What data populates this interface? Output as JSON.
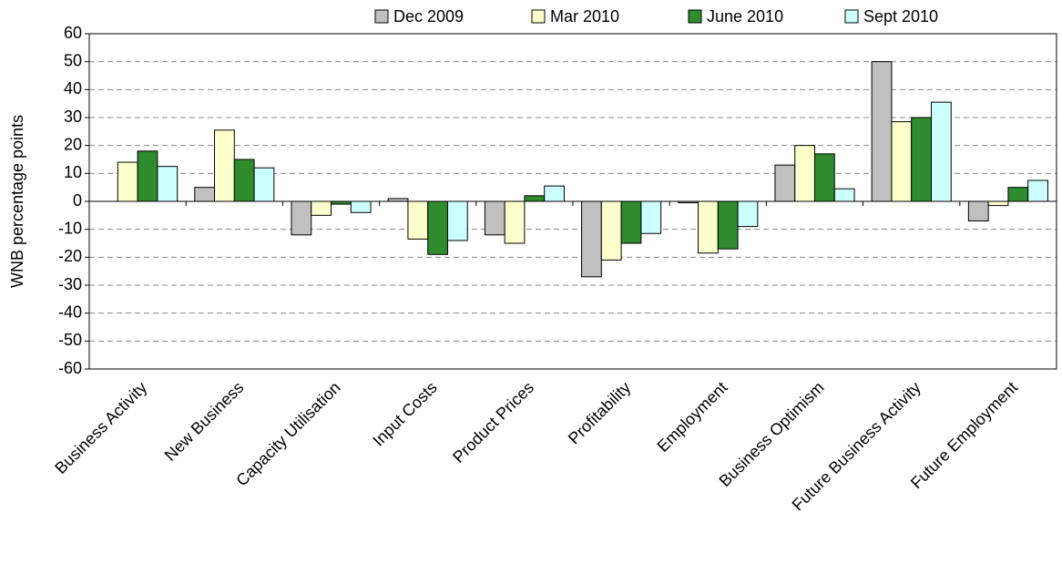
{
  "chart_data": {
    "type": "bar",
    "y_label": "WNB percentage points",
    "categories": [
      "Business Activity",
      "New Business",
      "Capacity Utilisation",
      "Input Costs",
      "Product Prices",
      "Profitability",
      "Employment",
      "Business Optimism",
      "Future Business Activity",
      "Future Employment"
    ],
    "series": [
      {
        "name": "Dec 2009",
        "color": "#c0c0c0",
        "values": [
          0,
          5,
          -12,
          1,
          -12,
          -27,
          -0.5,
          13,
          50,
          -7
        ]
      },
      {
        "name": "Mar 2010",
        "color": "#ffffcc",
        "values": [
          14,
          25.5,
          -5,
          -13.5,
          -15,
          -21,
          -18.5,
          20,
          28.5,
          -1.5
        ]
      },
      {
        "name": "June 2010",
        "color": "#2e8b2e",
        "values": [
          18,
          15,
          -1,
          -19,
          2,
          -15,
          -17,
          17,
          30,
          5
        ]
      },
      {
        "name": "Sept 2010",
        "color": "#ccffff",
        "values": [
          12.5,
          12,
          -4,
          -14,
          5.5,
          -11.5,
          -9,
          4.5,
          35.5,
          7.5
        ]
      }
    ],
    "ylim": [
      -60,
      60
    ],
    "yticks": [
      -60,
      -50,
      -40,
      -30,
      -20,
      -10,
      0,
      10,
      20,
      30,
      40,
      50,
      60
    ],
    "grid": true,
    "legend": "top"
  }
}
